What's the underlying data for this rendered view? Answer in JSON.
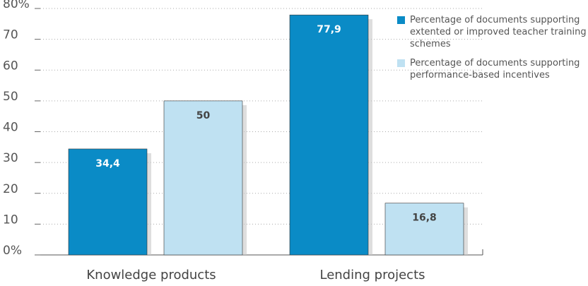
{
  "chart_data": {
    "type": "bar",
    "categories": [
      "Knowledge products",
      "Lending projects"
    ],
    "series": [
      {
        "name": "Percentage of documents supporting extented or improved teacher training schemes",
        "color": "#0a8bc6",
        "values": [
          34.4,
          77.9
        ],
        "value_labels": [
          "34,4",
          "77,9"
        ]
      },
      {
        "name": "Percentage of documents supporting performance-based incentives",
        "color": "#bfe1f2",
        "values": [
          50,
          16.8
        ],
        "value_labels": [
          "50",
          "16,8"
        ]
      }
    ],
    "ylim": [
      0,
      80
    ],
    "yticks": [
      {
        "value": 0,
        "label": "0%"
      },
      10,
      20,
      30,
      40,
      50,
      60,
      70,
      {
        "value": 80,
        "label": "80%"
      }
    ],
    "grid": true,
    "legend": "top-right"
  }
}
